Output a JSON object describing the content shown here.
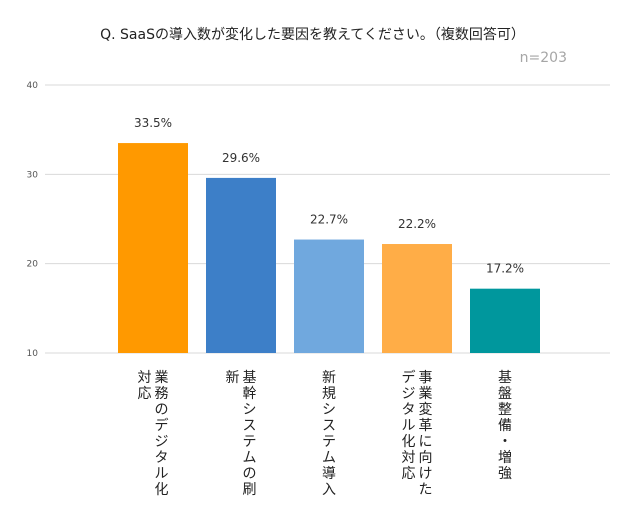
{
  "chart_data": {
    "type": "bar",
    "title": "Q. SaaSの導入数が変化した要因を教えてください。（複数回答可）",
    "note": "n=203",
    "categories": [
      [
        "業務のデジタル化",
        "対応"
      ],
      [
        "基幹システムの刷",
        "新"
      ],
      [
        "新規システム導入"
      ],
      [
        "事業変革に向けた",
        "デジタル化対応"
      ],
      [
        "基盤整備・増強"
      ]
    ],
    "values": [
      33.5,
      29.6,
      22.7,
      22.2,
      17.2
    ],
    "value_labels": [
      "33.5%",
      "29.6%",
      "22.7%",
      "22.2%",
      "17.2%"
    ],
    "colors": [
      "#ff9900",
      "#3d7fc8",
      "#70a8de",
      "#ffad47",
      "#00979d"
    ],
    "yticks": [
      10,
      20,
      30,
      40
    ],
    "ylim": [
      10,
      40
    ],
    "xlabel": "",
    "ylabel": "",
    "grid": true
  }
}
